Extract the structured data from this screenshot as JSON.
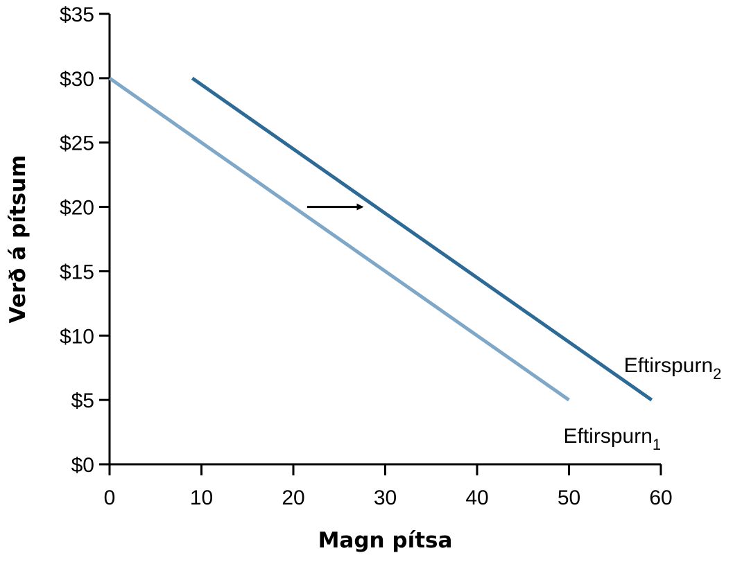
{
  "chart_data": {
    "type": "line",
    "title": "",
    "xlabel": "Magn pítsa",
    "ylabel": "Verð á pítsum",
    "xlim": [
      0,
      60
    ],
    "ylim": [
      0,
      35
    ],
    "x_ticks": [
      0,
      10,
      20,
      30,
      40,
      50,
      60
    ],
    "x_tick_labels": [
      "0",
      "10",
      "20",
      "30",
      "40",
      "50",
      "60"
    ],
    "y_ticks": [
      0,
      5,
      10,
      15,
      20,
      25,
      30,
      35
    ],
    "y_tick_labels": [
      "$0",
      "$5",
      "$10",
      "$15",
      "$20",
      "$25",
      "$30",
      "$35"
    ],
    "grid": false,
    "series": [
      {
        "name": "Eftirspurn",
        "subscript": "1",
        "color": "#7fa7c7",
        "x": [
          0,
          50
        ],
        "y": [
          30,
          5
        ]
      },
      {
        "name": "Eftirspurn",
        "subscript": "2",
        "color": "#2d6a96",
        "x": [
          9,
          59
        ],
        "y": [
          30,
          5
        ]
      }
    ],
    "annotations": [
      {
        "type": "arrow",
        "from": [
          21.5,
          20
        ],
        "to": [
          27.5,
          20
        ],
        "color": "#000000"
      }
    ]
  }
}
